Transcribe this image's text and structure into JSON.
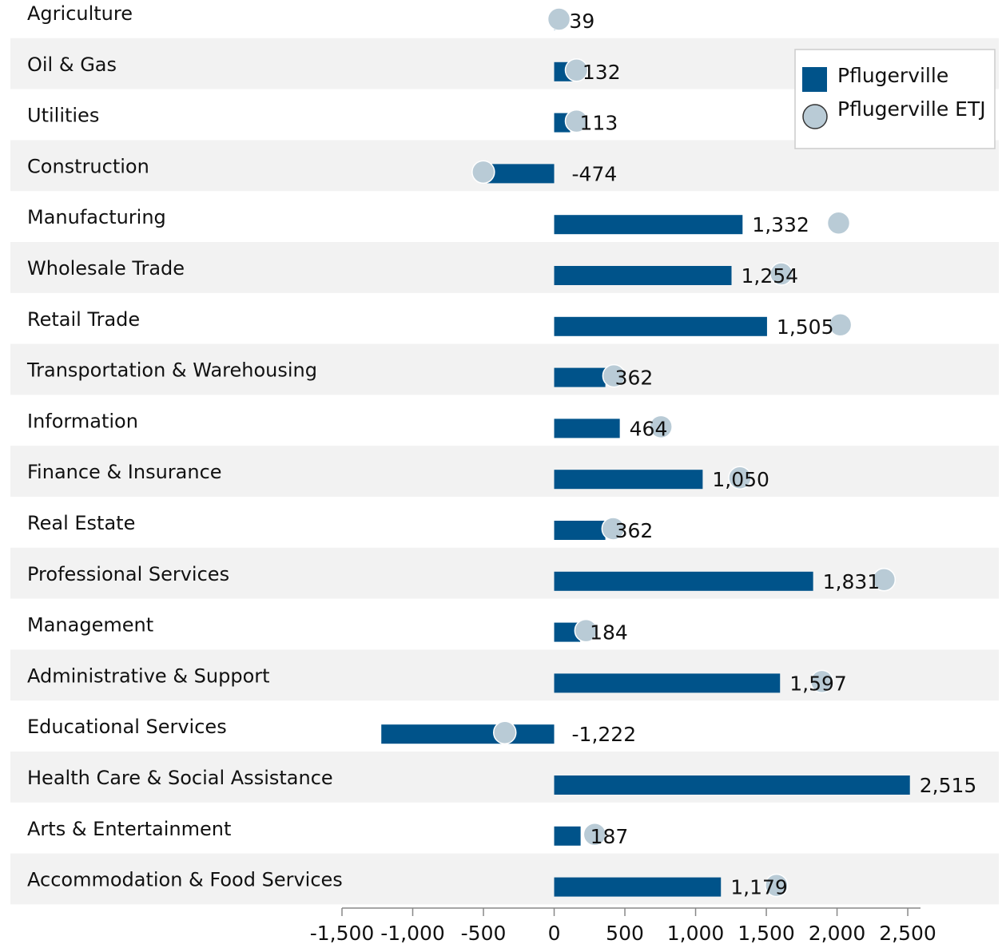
{
  "chart_data": {
    "type": "bar_dot",
    "categories": [
      "Agriculture",
      "Oil & Gas",
      "Utilities",
      "Construction",
      "Manufacturing",
      "Wholesale Trade",
      "Retail Trade",
      "Transportation & Warehousing",
      "Information",
      "Finance & Insurance",
      "Real Estate",
      "Professional Services",
      "Management",
      "Administrative & Support",
      "Educational Services",
      "Health Care & Social Assistance",
      "Arts & Entertainment",
      "Accommodation & Food Services"
    ],
    "series": [
      {
        "name": "Pflugerville",
        "color": "#00538a",
        "mark": "bar",
        "values": [
          39,
          132,
          113,
          -474,
          1332,
          1254,
          1505,
          362,
          464,
          1050,
          362,
          1831,
          184,
          1597,
          -1222,
          2515,
          187,
          1179
        ],
        "value_labels": [
          "39",
          "132",
          "113",
          "-474",
          "1,332",
          "1,254",
          "1,505",
          "362",
          "464",
          "1,050",
          "362",
          "1,831",
          "184",
          "1,597",
          "-1,222",
          "2,515",
          "187",
          "1,179"
        ]
      },
      {
        "name": "Pflugerville ETJ",
        "color": "#b9cbd6",
        "mark": "dot",
        "values": [
          34,
          158,
          158,
          -501,
          2011,
          1606,
          2023,
          423,
          755,
          1313,
          417,
          2332,
          225,
          1893,
          -349,
          null,
          287,
          1572
        ]
      }
    ],
    "xlim": [
      -1500,
      2590
    ],
    "xticks": [
      {
        "value": -1500,
        "label": "-1,500"
      },
      {
        "value": -1000,
        "label": "-1,000"
      },
      -500,
      0,
      500,
      {
        "value": 1000,
        "label": "1,000"
      },
      {
        "value": 1500,
        "label": "1,500"
      },
      {
        "value": 2000,
        "label": "2,000"
      },
      {
        "value": 2500,
        "label": "2,500"
      }
    ],
    "legend": "top-right",
    "stripes": true
  }
}
